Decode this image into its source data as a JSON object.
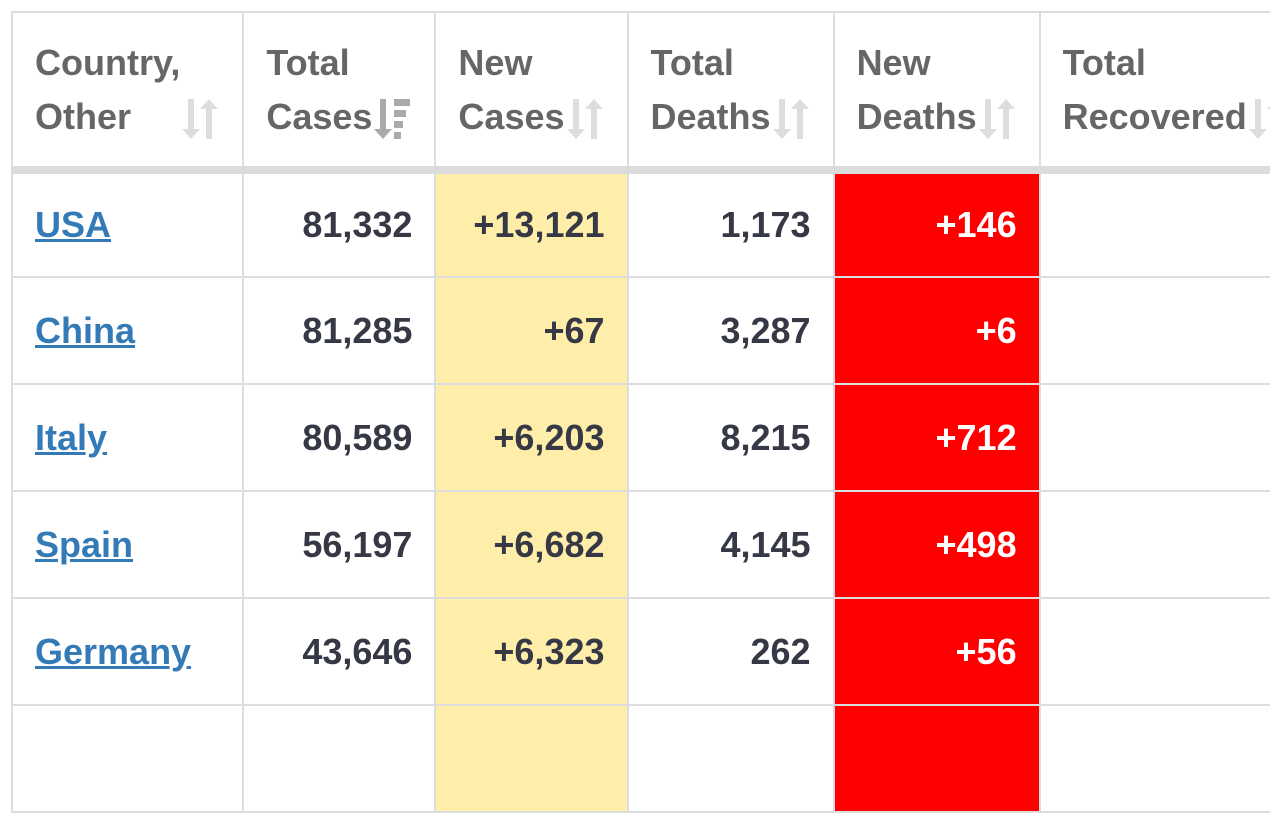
{
  "columns": [
    {
      "label_line1": "Country,",
      "label_line2": "Other",
      "sort_icon": "sort-unsorted-icon"
    },
    {
      "label_line1": "Total",
      "label_line2": "Cases",
      "sort_icon": "sort-descending-icon"
    },
    {
      "label_line1": "New",
      "label_line2": "Cases",
      "sort_icon": "sort-unsorted-icon"
    },
    {
      "label_line1": "Total",
      "label_line2": "Deaths",
      "sort_icon": "sort-unsorted-icon"
    },
    {
      "label_line1": "New",
      "label_line2": "Deaths",
      "sort_icon": "sort-unsorted-icon"
    },
    {
      "label_line1": "Total",
      "label_line2": "Recovered",
      "sort_icon": "sort-unsorted-icon"
    }
  ],
  "rows": [
    {
      "country": "USA",
      "total_cases": "81,332",
      "new_cases": "+13,121",
      "total_deaths": "1,173",
      "new_deaths": "+146"
    },
    {
      "country": "China",
      "total_cases": "81,285",
      "new_cases": "+67",
      "total_deaths": "3,287",
      "new_deaths": "+6"
    },
    {
      "country": "Italy",
      "total_cases": "80,589",
      "new_cases": "+6,203",
      "total_deaths": "8,215",
      "new_deaths": "+712"
    },
    {
      "country": "Spain",
      "total_cases": "56,197",
      "new_cases": "+6,682",
      "total_deaths": "4,145",
      "new_deaths": "+498"
    },
    {
      "country": "Germany",
      "total_cases": "43,646",
      "new_cases": "+6,323",
      "total_deaths": "262",
      "new_deaths": "+56"
    },
    {
      "country": "",
      "total_cases": "",
      "new_cases": "",
      "total_deaths": "",
      "new_deaths": ""
    }
  ],
  "colors": {
    "link": "#337ab7",
    "new_cases_bg": "#FFEEAA",
    "new_deaths_bg": "#ff0000",
    "header_text": "#666666",
    "cell_text": "#363945"
  }
}
